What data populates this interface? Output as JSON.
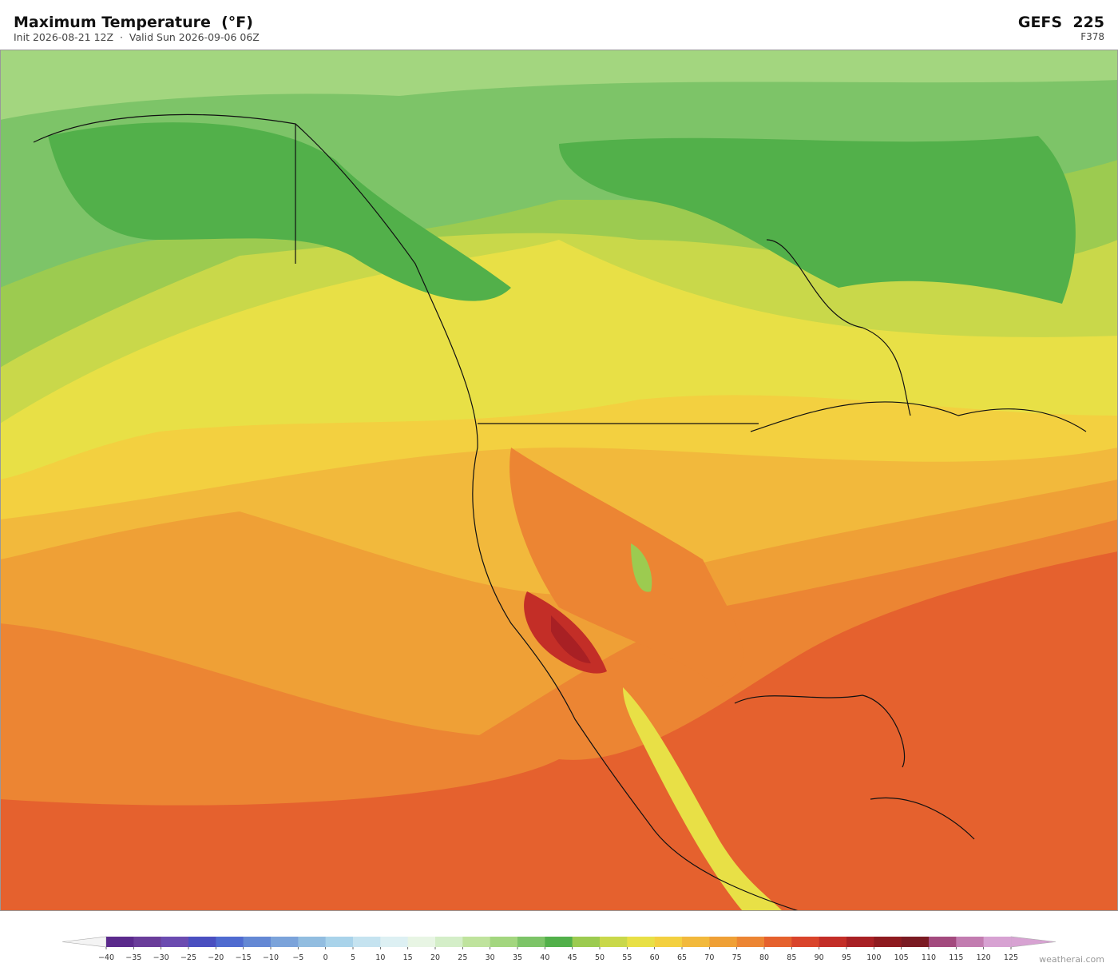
{
  "header": {
    "title": "Maximum Temperature  (°F)",
    "subtitle": "Init 2026-08-21 12Z  ·  Valid Sun 2026-09-06 06Z",
    "model": "GEFS  225",
    "forecast": "F378"
  },
  "colorbar": {
    "ticks": [
      {
        "value": -40,
        "label": "−40"
      },
      {
        "value": -35,
        "label": "−35"
      },
      {
        "value": -30,
        "label": "−30"
      },
      {
        "value": -25,
        "label": "−25"
      },
      {
        "value": -20,
        "label": "−20"
      },
      {
        "value": -15,
        "label": "−15"
      },
      {
        "value": -10,
        "label": "−10"
      },
      {
        "value": -5,
        "label": "−5"
      },
      0,
      5,
      10,
      15,
      20,
      25,
      30,
      35,
      40,
      45,
      50,
      55,
      60,
      65,
      70,
      75,
      80,
      85,
      90,
      95,
      100,
      105,
      110,
      115,
      120,
      125
    ],
    "colors": [
      "#5b2a8c",
      "#6a3d9a",
      "#6b4bb0",
      "#4a4fc0",
      "#4f6bd0",
      "#6488d4",
      "#7ba3da",
      "#92bde0",
      "#a9d3ea",
      "#c5e3f0",
      "#ddf0f3",
      "#e8f5e4",
      "#d4eec8",
      "#bfe39d",
      "#a3d67f",
      "#7dc468",
      "#52b04a",
      "#9ccb50",
      "#c9d84a",
      "#e8e046",
      "#f3d040",
      "#f2b93c",
      "#efa036",
      "#ec8533",
      "#e5612e",
      "#d9442b",
      "#c32e27",
      "#a82024",
      "#8e1a1f",
      "#7a1a22",
      "#a34a7e",
      "#c27cb0",
      "#d7a2d2"
    ]
  },
  "footer": {
    "credit": "weatherai.com"
  }
}
